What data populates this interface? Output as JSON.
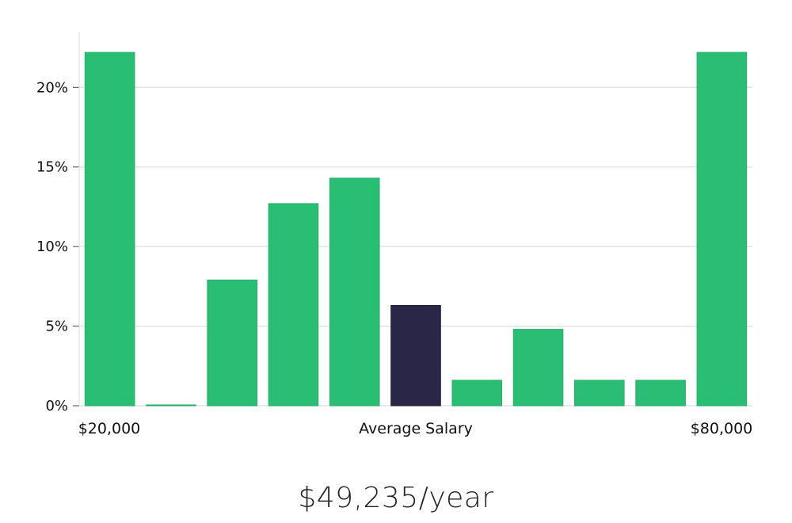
{
  "chart_data": {
    "type": "bar",
    "title": "",
    "xlabel": "Average Salary",
    "x_left_label": "$20,000",
    "x_right_label": "$80,000",
    "ylim": [
      0,
      23.5
    ],
    "yticks": [
      "0%",
      "5%",
      "10%",
      "15%",
      "20%"
    ],
    "ytick_values": [
      0,
      5,
      10,
      15,
      20
    ],
    "grid": true,
    "values": [
      22.2,
      0.05,
      7.9,
      12.7,
      14.3,
      6.3,
      1.6,
      4.8,
      1.6,
      1.6,
      22.2
    ],
    "highlight_index": 5,
    "colors": {
      "bar": "#2abd74",
      "highlight": "#2a2647",
      "grid": "#e3e3e3",
      "axis": "#dddddd"
    }
  },
  "salary_text": "$49,235/year"
}
